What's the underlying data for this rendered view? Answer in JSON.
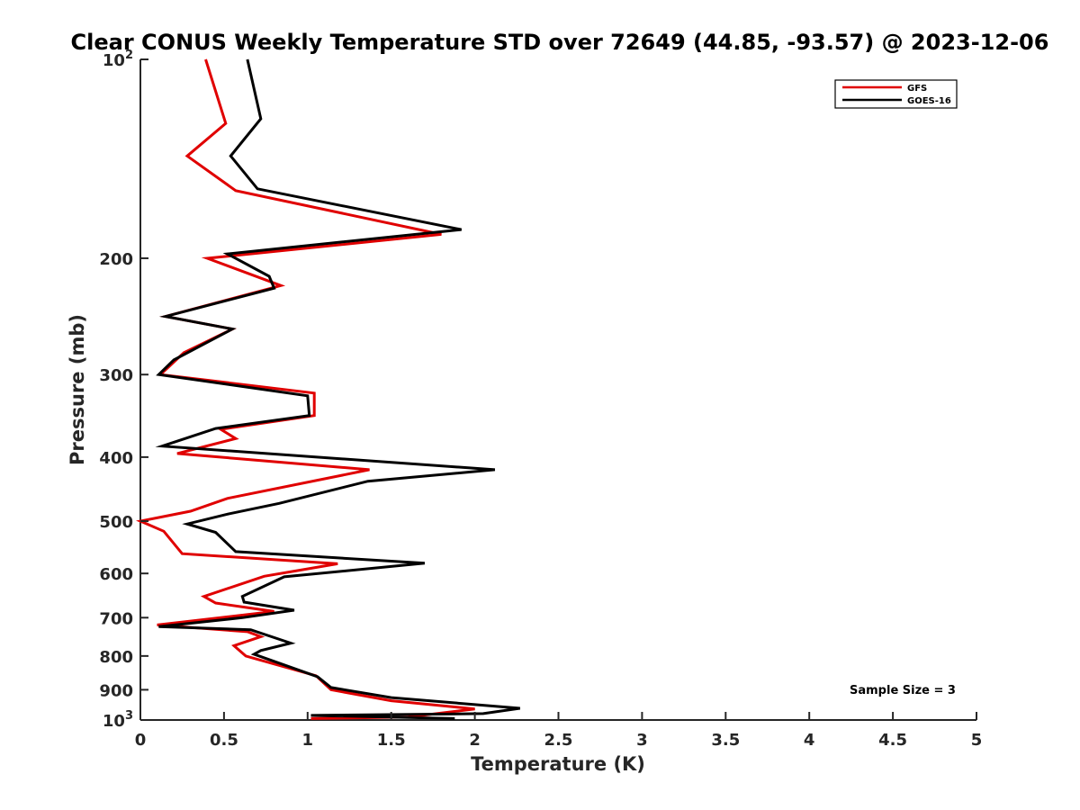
{
  "chart_data": {
    "type": "line",
    "title": "Clear CONUS Weekly Temperature STD over 72649 (44.85, -93.57) @ 2023-12-06",
    "xlabel": "Temperature (K)",
    "ylabel": "Pressure (mb)",
    "xlim": [
      0,
      5
    ],
    "ylim": [
      100,
      1000
    ],
    "y_scale": "log",
    "y_reversed": true,
    "grid": false,
    "legend_position": "top-right",
    "x_ticks": [
      0,
      0.5,
      1,
      1.5,
      2,
      2.5,
      3,
      3.5,
      4,
      4.5,
      5
    ],
    "x_tick_labels": [
      "0",
      "0.5",
      "1",
      "1.5",
      "2",
      "2.5",
      "3",
      "3.5",
      "4",
      "4.5",
      "5"
    ],
    "y_ticks": [
      {
        "value": 100,
        "base": "10",
        "exp": "2"
      },
      {
        "value": 200,
        "label": "200"
      },
      {
        "value": 300,
        "label": "300"
      },
      {
        "value": 400,
        "label": "400"
      },
      {
        "value": 500,
        "label": "500"
      },
      {
        "value": 600,
        "label": "600"
      },
      {
        "value": 700,
        "label": "700"
      },
      {
        "value": 800,
        "label": "800"
      },
      {
        "value": 900,
        "label": "900"
      },
      {
        "value": 1000,
        "base": "10",
        "exp": "3"
      }
    ],
    "series": [
      {
        "name": "GFS",
        "color": "#e00000",
        "points": [
          [
            0.39,
            100
          ],
          [
            0.51,
            125
          ],
          [
            0.28,
            140
          ],
          [
            0.57,
            158
          ],
          [
            1.8,
            184
          ],
          [
            0.4,
            200
          ],
          [
            0.84,
            220
          ],
          [
            0.15,
            245
          ],
          [
            0.55,
            256
          ],
          [
            0.26,
            278
          ],
          [
            0.12,
            300
          ],
          [
            1.04,
            320
          ],
          [
            1.04,
            346
          ],
          [
            0.48,
            363
          ],
          [
            0.57,
            375
          ],
          [
            0.22,
            395
          ],
          [
            1.37,
            418
          ],
          [
            0.52,
            462
          ],
          [
            0.3,
            483
          ],
          [
            0.0,
            500
          ],
          [
            0.14,
            518
          ],
          [
            0.25,
            560
          ],
          [
            1.18,
            580
          ],
          [
            0.74,
            606
          ],
          [
            0.38,
            650
          ],
          [
            0.45,
            665
          ],
          [
            0.8,
            685
          ],
          [
            0.1,
            718
          ],
          [
            0.64,
            735
          ],
          [
            0.72,
            748
          ],
          [
            0.56,
            772
          ],
          [
            0.63,
            800
          ],
          [
            1.05,
            857
          ],
          [
            1.14,
            900
          ],
          [
            1.5,
            935
          ],
          [
            2.0,
            962
          ],
          [
            1.6,
            990
          ],
          [
            1.02,
            995
          ]
        ]
      },
      {
        "name": "GOES-16",
        "color": "#000000",
        "points": [
          [
            0.64,
            100
          ],
          [
            0.72,
            123
          ],
          [
            0.54,
            140
          ],
          [
            0.7,
            157
          ],
          [
            1.92,
            181
          ],
          [
            0.52,
            197
          ],
          [
            0.77,
            213
          ],
          [
            0.8,
            222
          ],
          [
            0.15,
            245
          ],
          [
            0.55,
            256
          ],
          [
            0.2,
            285
          ],
          [
            0.11,
            300
          ],
          [
            1.0,
            323
          ],
          [
            1.01,
            346
          ],
          [
            0.45,
            362
          ],
          [
            0.13,
            385
          ],
          [
            2.12,
            418
          ],
          [
            1.36,
            435
          ],
          [
            0.83,
            470
          ],
          [
            0.52,
            488
          ],
          [
            0.28,
            505
          ],
          [
            0.45,
            520
          ],
          [
            0.57,
            556
          ],
          [
            1.7,
            579
          ],
          [
            0.86,
            607
          ],
          [
            0.61,
            650
          ],
          [
            0.62,
            663
          ],
          [
            0.92,
            682
          ],
          [
            0.61,
            700
          ],
          [
            0.11,
            722
          ],
          [
            0.66,
            730
          ],
          [
            0.9,
            765
          ],
          [
            0.72,
            785
          ],
          [
            0.68,
            795
          ],
          [
            1.06,
            860
          ],
          [
            1.14,
            893
          ],
          [
            1.5,
            925
          ],
          [
            2.27,
            960
          ],
          [
            2.05,
            978
          ],
          [
            1.02,
            984
          ],
          [
            1.88,
            995
          ]
        ]
      }
    ],
    "annotation": "Sample Size = 3"
  }
}
